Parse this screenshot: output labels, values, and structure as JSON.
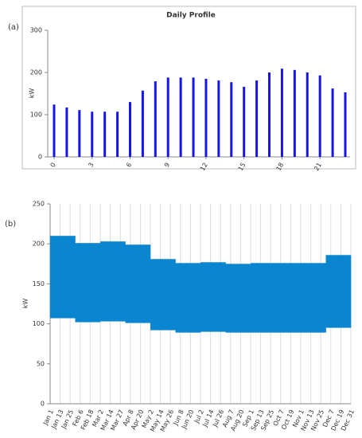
{
  "chart_data": [
    {
      "type": "bar",
      "panel_label": "(a)",
      "title": "Daily Profile",
      "y_label": "kW",
      "categories": [
        "0",
        null,
        null,
        "3",
        null,
        null,
        "6",
        null,
        null,
        "9",
        null,
        null,
        "12",
        null,
        null,
        "15",
        null,
        null,
        "18",
        null,
        null,
        "21",
        null,
        null
      ],
      "values": [
        124,
        117,
        111,
        107,
        107,
        107,
        130,
        157,
        179,
        188,
        188,
        188,
        185,
        181,
        177,
        166,
        181,
        200,
        209,
        206,
        200,
        193,
        162,
        153
      ],
      "color": "#1515e8",
      "ylim": [
        0,
        300
      ],
      "yticks": [
        0,
        100,
        200,
        300
      ]
    },
    {
      "type": "range",
      "panel_label": "(b)",
      "y_label": "kW",
      "categories": [
        null,
        null,
        null,
        null,
        null,
        null,
        null,
        null,
        null,
        null,
        null,
        null
      ],
      "high": [
        210,
        201,
        203,
        199,
        181,
        176,
        177,
        175,
        176,
        176,
        176,
        186
      ],
      "low": [
        107,
        102,
        103,
        101,
        92,
        89,
        90,
        89,
        89,
        89,
        89,
        95
      ],
      "color": "#0a86d0",
      "xtick_labels": [
        "Jan 1",
        "Jan 13",
        "Jan 25",
        "Feb 6",
        "Feb 18",
        "Mar 2",
        "Mar 14",
        "Mar 27",
        "Apr 8",
        "Apr 20",
        "May 2",
        "May 14",
        "May 26",
        "Jun 8",
        "Jun 20",
        "Jul 2",
        "Jul 14",
        "Jul 26",
        "Aug 7",
        "Aug 20",
        "Sep 1",
        "Sep 13",
        "Sep 25",
        "Oct 7",
        "Oct 19",
        "Nov 1",
        "Nov 13",
        "Nov 25",
        "Dec 7",
        "Dec 19",
        "Dec 31"
      ],
      "ylim": [
        0,
        250
      ],
      "yticks": [
        0,
        50,
        100,
        150,
        200,
        250
      ],
      "grid": true
    }
  ]
}
